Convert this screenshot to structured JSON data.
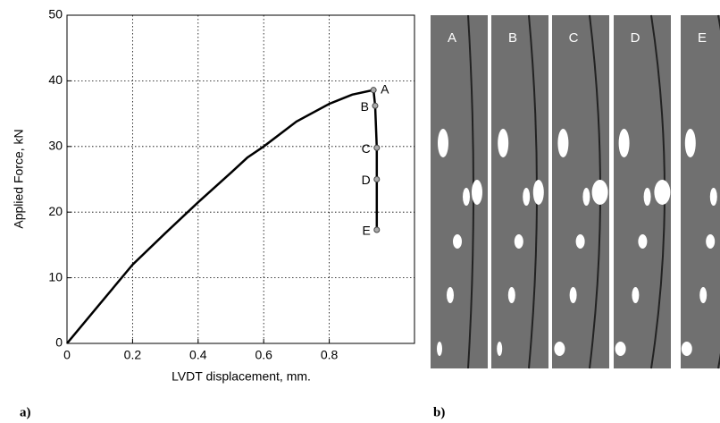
{
  "chart_data": {
    "type": "line",
    "xlabel": "LVDT displacement,  mm.",
    "ylabel": "Applied Force,  kN",
    "xlim": [
      0,
      1.06
    ],
    "xticks": [
      0,
      0.2,
      0.4,
      0.6,
      0.8
    ],
    "ylim": [
      0,
      50
    ],
    "yticks": [
      0,
      10,
      20,
      30,
      40,
      50
    ],
    "grid": true,
    "series": [
      {
        "color": "#000000",
        "x": [
          0,
          0.1,
          0.2,
          0.3,
          0.4,
          0.5,
          0.55,
          0.6,
          0.7,
          0.8,
          0.87,
          0.935,
          0.94,
          0.945,
          0.945,
          0.945
        ],
        "values": [
          0,
          6,
          12,
          16.8,
          21.5,
          26,
          28.3,
          30,
          33.8,
          36.5,
          37.9,
          38.6,
          36.2,
          29.8,
          25,
          17.3
        ]
      }
    ],
    "points": [
      {
        "label": "A",
        "x": 0.935,
        "y": 38.6
      },
      {
        "label": "B",
        "x": 0.94,
        "y": 36.2
      },
      {
        "label": "C",
        "x": 0.945,
        "y": 29.8
      },
      {
        "label": "D",
        "x": 0.945,
        "y": 25
      },
      {
        "label": "E",
        "x": 0.945,
        "y": 17.3
      }
    ]
  },
  "panel_labels": [
    "a)",
    "b)"
  ],
  "strips": [
    "A",
    "B",
    "C",
    "D",
    "E"
  ]
}
